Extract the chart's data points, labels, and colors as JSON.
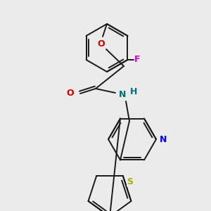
{
  "background_color": "#ebebeb",
  "bond_color": "#1a1a1a",
  "atom_colors": {
    "F": "#cc00cc",
    "O": "#cc0000",
    "N_amide": "#007070",
    "H": "#007070",
    "N_pyridine": "#0000ee",
    "S": "#aaaa00"
  },
  "figsize": [
    3.0,
    3.0
  ],
  "dpi": 100
}
